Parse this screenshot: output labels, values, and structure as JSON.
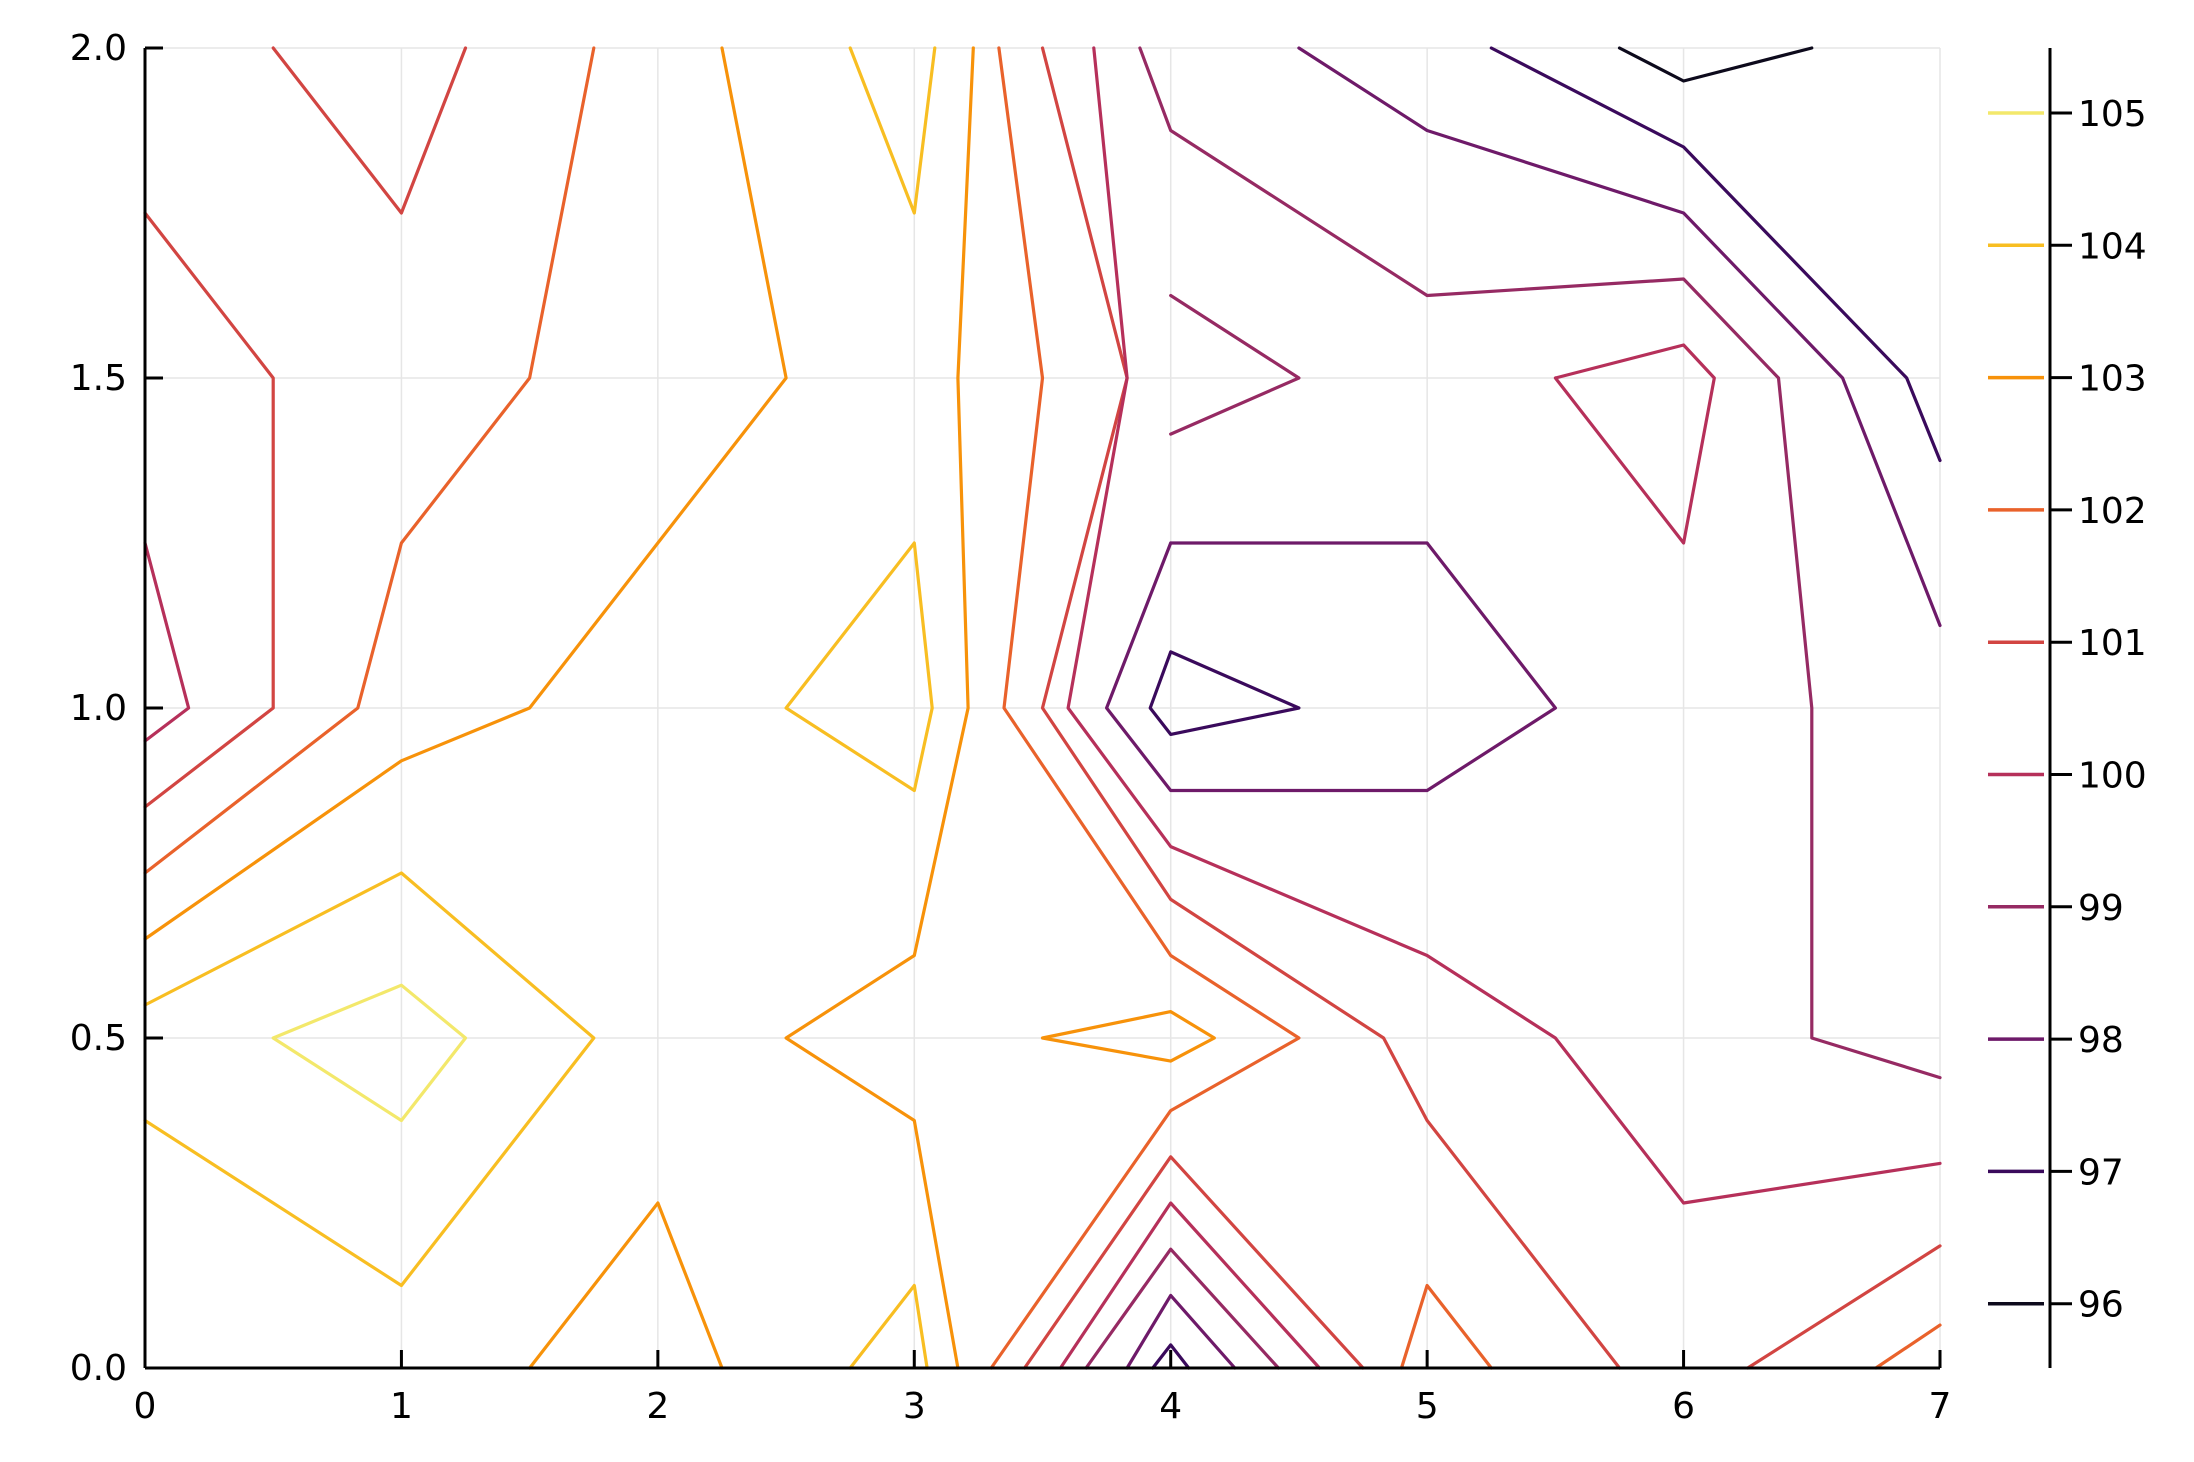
{
  "chart_data": {
    "type": "contour",
    "title": "",
    "xlabel": "",
    "ylabel": "",
    "xlim": [
      0,
      7
    ],
    "ylim": [
      0,
      2
    ],
    "x_ticks": [
      "0",
      "1",
      "2",
      "3",
      "4",
      "5",
      "6",
      "7"
    ],
    "y_ticks": [
      "0.0",
      "0.5",
      "1.0",
      "1.5",
      "2.0"
    ],
    "grid": true,
    "legend": "right colorbar",
    "colorbar_levels": [
      {
        "label": "105",
        "color": "#f3e86b"
      },
      {
        "label": "104",
        "color": "#f8be22"
      },
      {
        "label": "103",
        "color": "#f7920a"
      },
      {
        "label": "102",
        "color": "#e9622b"
      },
      {
        "label": "101",
        "color": "#d24542"
      },
      {
        "label": "100",
        "color": "#b6305a"
      },
      {
        "label": "99",
        "color": "#962a63"
      },
      {
        "label": "98",
        "color": "#6e1a69"
      },
      {
        "label": "97",
        "color": "#3a0a5c"
      },
      {
        "label": "96",
        "color": "#0d0a1c"
      }
    ],
    "contours": [
      {
        "level": 105,
        "points": [
          [
            0.5,
            0.5
          ],
          [
            1,
            0.58
          ],
          [
            1.25,
            0.5
          ],
          [
            1,
            0.375
          ],
          [
            0.5,
            0.5
          ]
        ]
      },
      {
        "level": 104,
        "points": [
          [
            0,
            0.55
          ],
          [
            1,
            0.75
          ],
          [
            1.75,
            0.5
          ],
          [
            1,
            0.125
          ],
          [
            0,
            0.375
          ]
        ]
      },
      {
        "level": 104,
        "points": [
          [
            2.75,
            2
          ],
          [
            3,
            1.75
          ],
          [
            3.08,
            2
          ]
        ]
      },
      {
        "level": 104,
        "points": [
          [
            2.5,
            1
          ],
          [
            3,
            1.25
          ],
          [
            3.07,
            1
          ],
          [
            3,
            0.875
          ],
          [
            2.5,
            1
          ]
        ]
      },
      {
        "level": 104,
        "points": [
          [
            2.75,
            0
          ],
          [
            3,
            0.125
          ],
          [
            3.05,
            0
          ]
        ]
      },
      {
        "level": 103,
        "points": [
          [
            0,
            0.65
          ],
          [
            1,
            0.92
          ],
          [
            1.5,
            1
          ],
          [
            2.5,
            1.5
          ],
          [
            2.25,
            2
          ]
        ]
      },
      {
        "level": 103,
        "points": [
          [
            1.5,
            0
          ],
          [
            2,
            0.25
          ],
          [
            2.25,
            0
          ]
        ]
      },
      {
        "level": 103,
        "points": [
          [
            3.23,
            2
          ],
          [
            3.17,
            1.5
          ],
          [
            3.21,
            1
          ],
          [
            3,
            0.625
          ],
          [
            2.5,
            0.5
          ],
          [
            3,
            0.375
          ],
          [
            3.17,
            0
          ]
        ]
      },
      {
        "level": 103,
        "points": [
          [
            3.5,
            0.5
          ],
          [
            4,
            0.54
          ],
          [
            4.17,
            0.5
          ],
          [
            4,
            0.465
          ],
          [
            3.5,
            0.5
          ]
        ]
      },
      {
        "level": 102,
        "points": [
          [
            0,
            0.75
          ],
          [
            0.83,
            1
          ],
          [
            1,
            1.25
          ],
          [
            1.5,
            1.5
          ],
          [
            1.75,
            2
          ]
        ]
      },
      {
        "level": 102,
        "points": [
          [
            3.33,
            2
          ],
          [
            3.5,
            1.5
          ],
          [
            3.35,
            1
          ],
          [
            4,
            0.625
          ],
          [
            4.5,
            0.5
          ],
          [
            4,
            0.39
          ],
          [
            3.3,
            0
          ]
        ]
      },
      {
        "level": 102,
        "points": [
          [
            4.9,
            0
          ],
          [
            5,
            0.125
          ],
          [
            5.25,
            0
          ]
        ]
      },
      {
        "level": 102,
        "points": [
          [
            6.75,
            0
          ],
          [
            7,
            0.065
          ]
        ]
      },
      {
        "level": 101,
        "points": [
          [
            0.5,
            2
          ],
          [
            1,
            1.75
          ],
          [
            1.25,
            2
          ]
        ]
      },
      {
        "level": 101,
        "points": [
          [
            0,
            1.75
          ],
          [
            0.5,
            1.5
          ],
          [
            0.5,
            1
          ],
          [
            0,
            0.85
          ]
        ]
      },
      {
        "level": 101,
        "points": [
          [
            3.5,
            2
          ],
          [
            3.83,
            1.5
          ],
          [
            3.5,
            1
          ],
          [
            4,
            0.71
          ],
          [
            4.83,
            0.5
          ],
          [
            5,
            0.375
          ],
          [
            5.75,
            0
          ]
        ]
      },
      {
        "level": 101,
        "points": [
          [
            3.43,
            0
          ],
          [
            4,
            0.32
          ],
          [
            4.75,
            0
          ]
        ]
      },
      {
        "level": 101,
        "points": [
          [
            6.25,
            0
          ],
          [
            7,
            0.185
          ]
        ]
      },
      {
        "level": 100,
        "points": [
          [
            0,
            1.25
          ],
          [
            0.17,
            1
          ],
          [
            0,
            0.95
          ]
        ]
      },
      {
        "level": 100,
        "points": [
          [
            3.7,
            2
          ],
          [
            3.83,
            1.5
          ],
          [
            3.6,
            1
          ],
          [
            4,
            0.79
          ],
          [
            5,
            0.625
          ],
          [
            5.5,
            0.5
          ],
          [
            6,
            0.25
          ],
          [
            7,
            0.31
          ]
        ]
      },
      {
        "level": 100,
        "points": [
          [
            3.57,
            0
          ],
          [
            4,
            0.25
          ],
          [
            4.58,
            0
          ]
        ]
      },
      {
        "level": 100,
        "points": [
          [
            5.5,
            1.5
          ],
          [
            6,
            1.55
          ],
          [
            6.12,
            1.5
          ],
          [
            6,
            1.25
          ],
          [
            5.5,
            1.5
          ]
        ]
      },
      {
        "level": 99,
        "points": [
          [
            3.88,
            2
          ],
          [
            4,
            1.875
          ],
          [
            5,
            1.625
          ],
          [
            6,
            1.65
          ],
          [
            6.37,
            1.5
          ],
          [
            6.5,
            1
          ],
          [
            6.5,
            0.5
          ],
          [
            7,
            0.44
          ]
        ]
      },
      {
        "level": 99,
        "points": [
          [
            3.67,
            0
          ],
          [
            4,
            0.18
          ],
          [
            4.42,
            0
          ]
        ]
      },
      {
        "level": 99,
        "points": [
          [
            4,
            1.625
          ],
          [
            4.5,
            1.5
          ],
          [
            4,
            1.415
          ]
        ]
      },
      {
        "level": 98,
        "points": [
          [
            4.5,
            2
          ],
          [
            5,
            1.875
          ],
          [
            6,
            1.75
          ],
          [
            6.62,
            1.5
          ],
          [
            7,
            1.125
          ]
        ]
      },
      {
        "level": 98,
        "points": [
          [
            4,
            1.25
          ],
          [
            5,
            1.25
          ],
          [
            5.5,
            1
          ],
          [
            5,
            0.875
          ],
          [
            4,
            0.875
          ],
          [
            3.75,
            1
          ],
          [
            4,
            1.25
          ]
        ]
      },
      {
        "level": 98,
        "points": [
          [
            3.83,
            0
          ],
          [
            4,
            0.11
          ],
          [
            4.25,
            0
          ]
        ]
      },
      {
        "level": 97,
        "points": [
          [
            5.25,
            2
          ],
          [
            6,
            1.85
          ],
          [
            6.87,
            1.5
          ],
          [
            7,
            1.375
          ]
        ]
      },
      {
        "level": 97,
        "points": [
          [
            4,
            1.085
          ],
          [
            4.5,
            1
          ],
          [
            4,
            0.96
          ],
          [
            3.92,
            1
          ],
          [
            4,
            1.085
          ]
        ]
      },
      {
        "level": 97,
        "points": [
          [
            3.93,
            0
          ],
          [
            4,
            0.035
          ],
          [
            4.07,
            0
          ]
        ]
      },
      {
        "level": 96,
        "points": [
          [
            5.75,
            2
          ],
          [
            6,
            1.95
          ],
          [
            6.5,
            2
          ]
        ]
      }
    ]
  }
}
